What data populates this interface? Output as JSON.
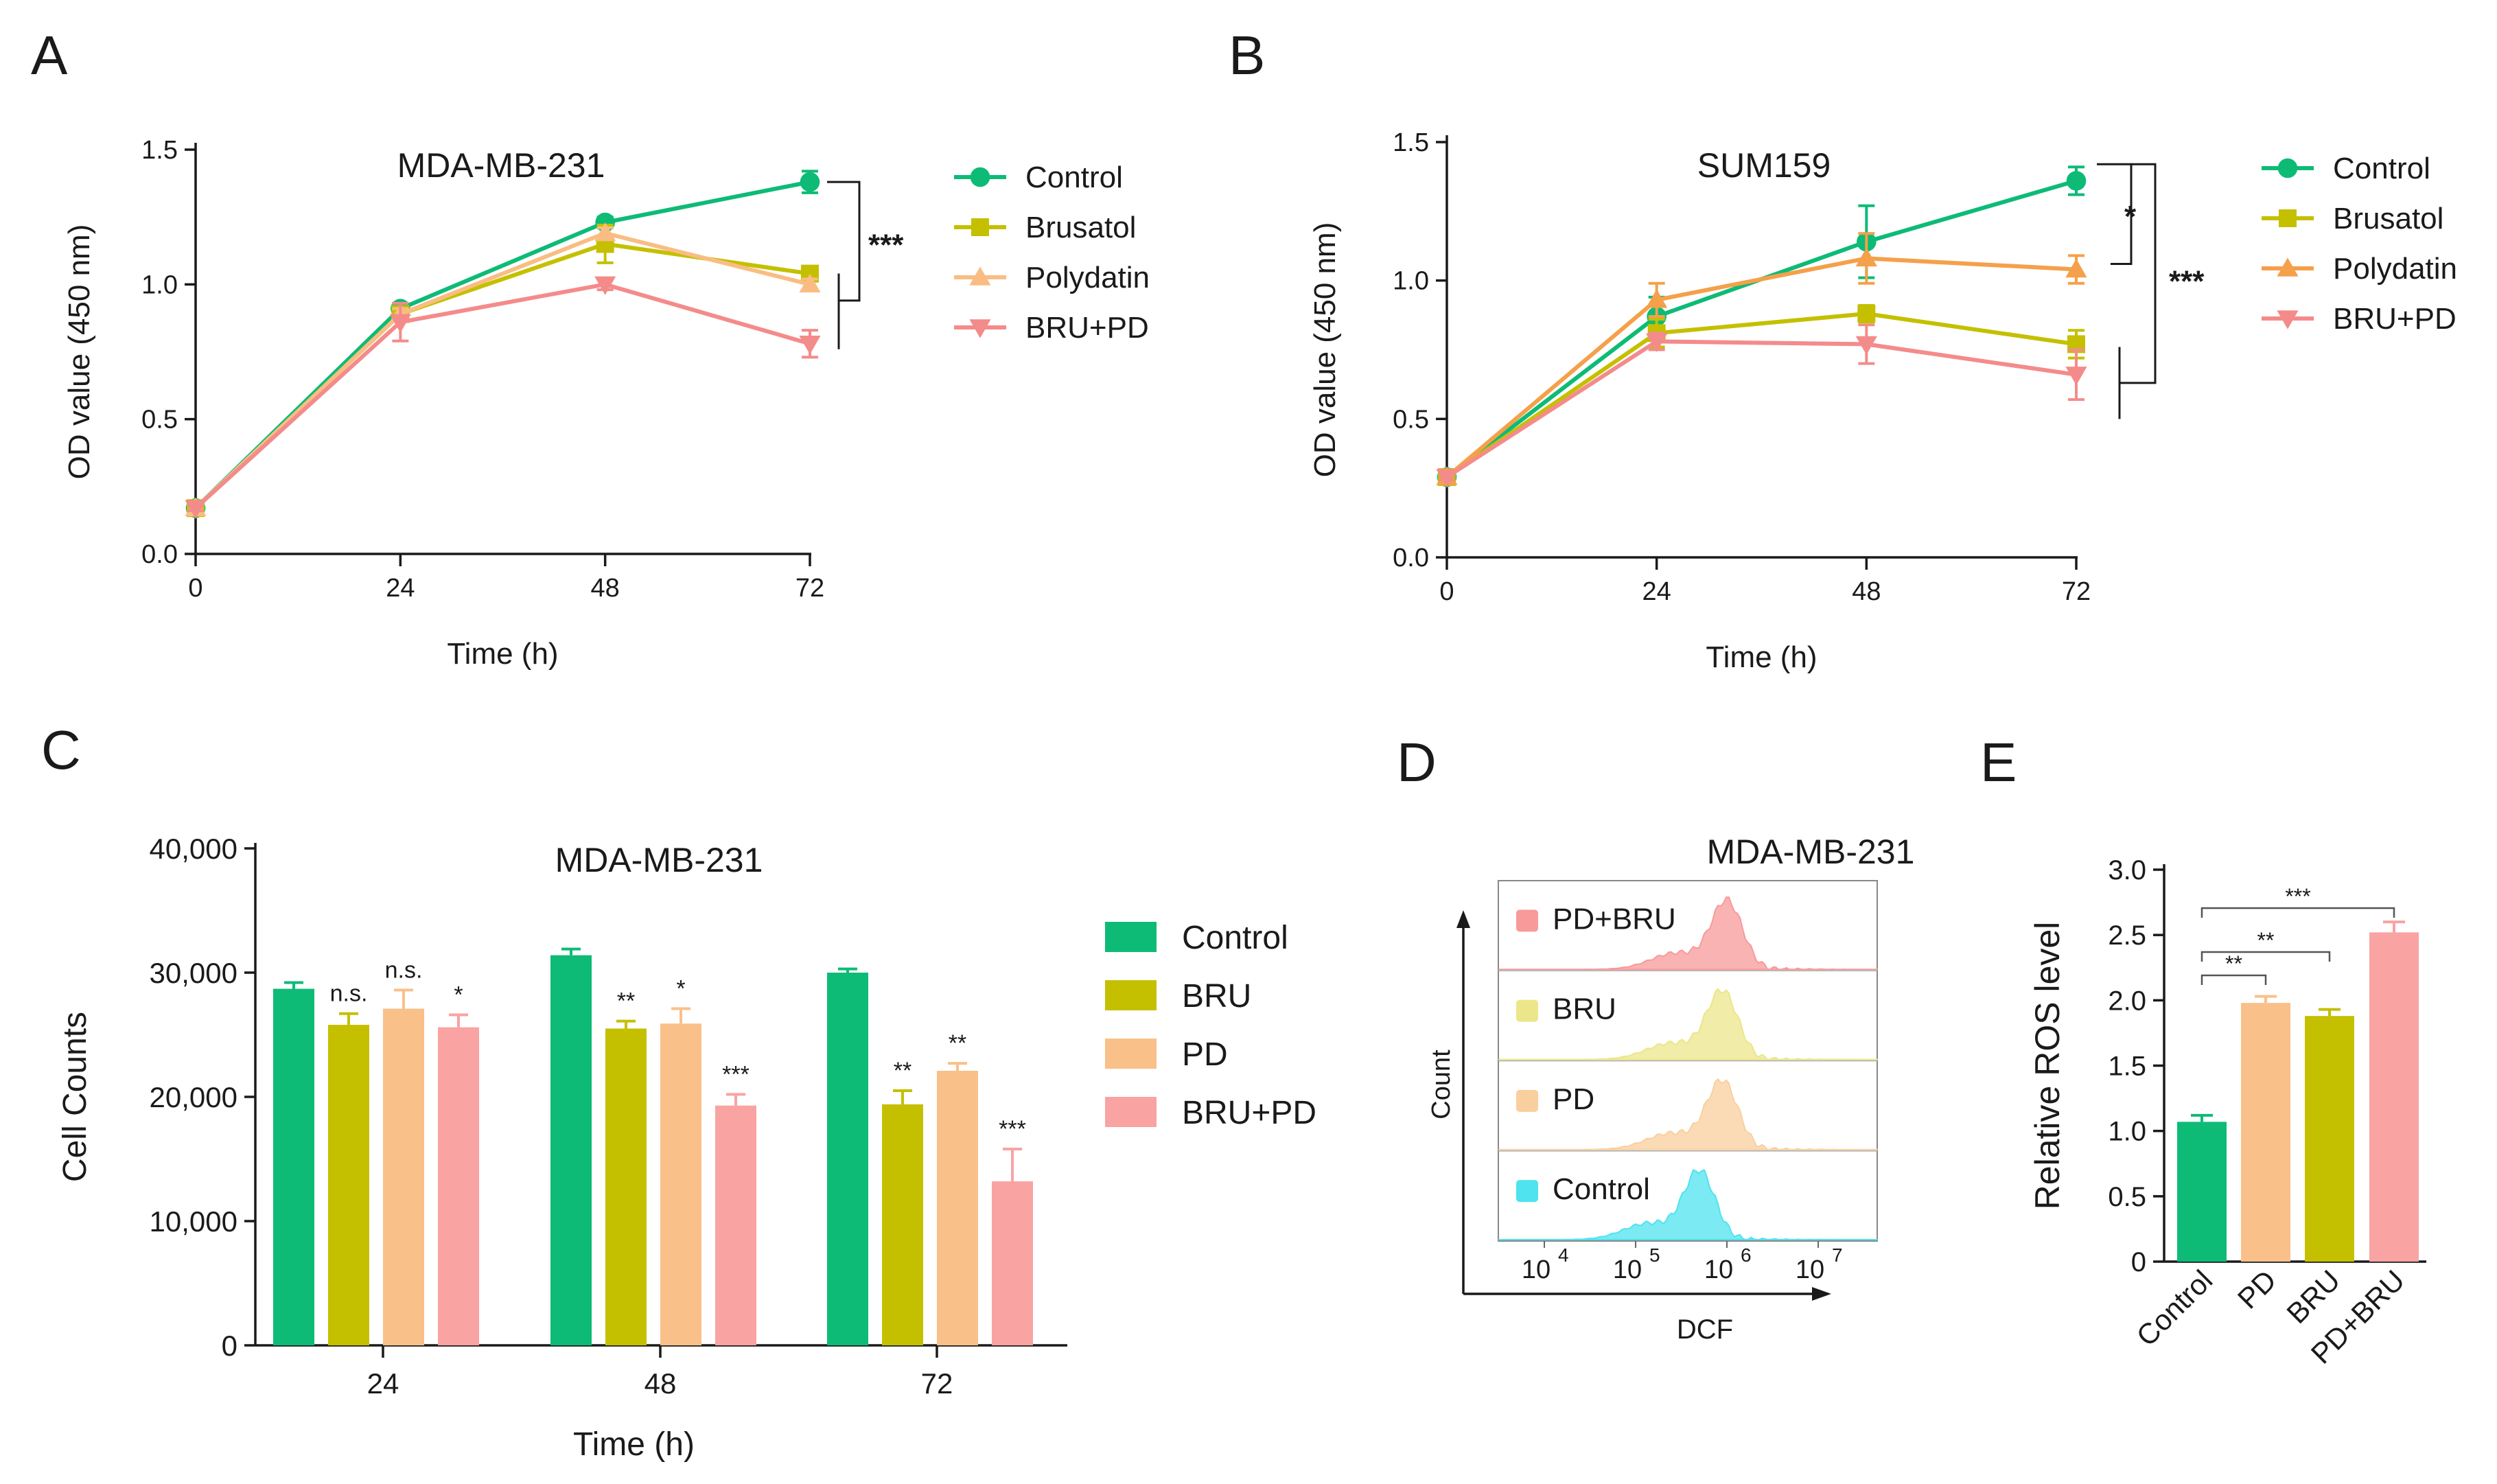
{
  "panels": {
    "A": "A",
    "B": "B",
    "C": "C",
    "D": "D",
    "E": "E"
  },
  "colors": {
    "control": "#0dbb77",
    "brusatol": "#c4c000",
    "polydatin": "#f9bd83",
    "bru_pd": "#f48b8b",
    "polydatin_b": "#f5a04a",
    "c_pd": "#f9c08a",
    "c_brupd": "#f9a3a3",
    "flow_red": "#f89a9a",
    "flow_yellow": "#ece68a",
    "flow_orange": "#f9cf9e",
    "flow_cyan": "#4fe3ef"
  },
  "chart_data": [
    {
      "id": "A",
      "type": "line",
      "title": "MDA-MB-231",
      "xlabel": "Time (h)",
      "ylabel": "OD value (450 nm)",
      "x": [
        0,
        24,
        48,
        72
      ],
      "xticks": [
        "0",
        "24",
        "48",
        "72"
      ],
      "ylim": [
        0,
        1.5
      ],
      "yticks": [
        "0.0",
        "0.5",
        "1.0",
        "1.5"
      ],
      "series": [
        {
          "name": "Control",
          "marker": "circle",
          "color": "#0dbb77",
          "values": [
            0.17,
            0.91,
            1.23,
            1.38
          ],
          "err": [
            0.01,
            0.02,
            0.02,
            0.04
          ]
        },
        {
          "name": "Brusatol",
          "marker": "square",
          "color": "#c4c000",
          "values": [
            0.17,
            0.89,
            1.15,
            1.04
          ],
          "err": [
            0.01,
            0.02,
            0.07,
            0.02
          ]
        },
        {
          "name": "Polydatin",
          "marker": "triangle-up",
          "color": "#f9bd83",
          "values": [
            0.17,
            0.89,
            1.19,
            1.0
          ],
          "err": [
            0.01,
            0.02,
            0.02,
            0.02
          ]
        },
        {
          "name": "BRU+PD",
          "marker": "triangle-down",
          "color": "#f48b8b",
          "values": [
            0.17,
            0.86,
            1.0,
            0.78
          ],
          "err": [
            0.01,
            0.07,
            0.02,
            0.05
          ]
        }
      ],
      "annotations": [
        "***"
      ]
    },
    {
      "id": "B",
      "type": "line",
      "title": "SUM159",
      "xlabel": "Time (h)",
      "ylabel": "OD value (450 nm)",
      "x": [
        0,
        24,
        48,
        72
      ],
      "xticks": [
        "0",
        "24",
        "48",
        "72"
      ],
      "ylim": [
        0,
        1.5
      ],
      "yticks": [
        "0.0",
        "0.5",
        "1.0",
        "1.5"
      ],
      "series": [
        {
          "name": "Control",
          "marker": "circle",
          "color": "#0dbb77",
          "values": [
            0.29,
            0.87,
            1.14,
            1.36
          ],
          "err": [
            0.01,
            0.07,
            0.13,
            0.05
          ]
        },
        {
          "name": "Brusatol",
          "marker": "square",
          "color": "#c4c000",
          "values": [
            0.29,
            0.81,
            0.88,
            0.77
          ],
          "err": [
            0.01,
            0.05,
            0.03,
            0.05
          ]
        },
        {
          "name": "Polydatin",
          "marker": "triangle-up",
          "color": "#f5a04a",
          "values": [
            0.29,
            0.93,
            1.08,
            1.04
          ],
          "err": [
            0.01,
            0.06,
            0.09,
            0.05
          ]
        },
        {
          "name": "BRU+PD",
          "marker": "triangle-down",
          "color": "#f48b8b",
          "values": [
            0.29,
            0.78,
            0.77,
            0.66
          ],
          "err": [
            0.01,
            0.03,
            0.07,
            0.09
          ]
        }
      ],
      "annotations": [
        "*",
        "***"
      ]
    },
    {
      "id": "C",
      "type": "bar",
      "title": "MDA-MB-231",
      "xlabel": "Time (h)",
      "ylabel": "Cell Counts",
      "categories": [
        "24",
        "48",
        "72"
      ],
      "ylim": [
        0,
        40000
      ],
      "yticks": [
        "0",
        "10,000",
        "20,000",
        "30,000",
        "40,000"
      ],
      "series": [
        {
          "name": "Control",
          "color": "#0dbb77",
          "values": [
            28700,
            31400,
            30000
          ],
          "err": [
            500,
            500,
            300
          ],
          "sig": [
            "",
            "",
            ""
          ]
        },
        {
          "name": "BRU",
          "color": "#c4c000",
          "values": [
            25800,
            25500,
            19400
          ],
          "err": [
            900,
            600,
            1100
          ],
          "sig": [
            "n.s.",
            "**",
            "**"
          ]
        },
        {
          "name": "PD",
          "color": "#f9c08a",
          "values": [
            27100,
            25900,
            22100
          ],
          "err": [
            1500,
            1200,
            600
          ],
          "sig": [
            "n.s.",
            "*",
            "**"
          ]
        },
        {
          "name": "BRU+PD",
          "color": "#f9a3a3",
          "values": [
            25600,
            19300,
            13200
          ],
          "err": [
            1000,
            900,
            2600
          ],
          "sig": [
            "*",
            "***",
            "***"
          ]
        }
      ]
    },
    {
      "id": "D",
      "type": "histogram",
      "title": "MDA-MB-231",
      "xlabel": "DCF",
      "ylabel": "Count",
      "xticks": [
        "10",
        "10",
        "10",
        "10"
      ],
      "xtick_exp": [
        "4",
        "5",
        "6",
        "7"
      ],
      "tracks": [
        {
          "name": "PD+BRU",
          "color": "#f89a9a",
          "peak_log": 6.0
        },
        {
          "name": "BRU",
          "color": "#ece68a",
          "peak_log": 5.95
        },
        {
          "name": "PD",
          "color": "#f9cf9e",
          "peak_log": 5.95
        },
        {
          "name": "Control",
          "color": "#4fe3ef",
          "peak_log": 5.7
        }
      ]
    },
    {
      "id": "E",
      "type": "bar",
      "title": "",
      "xlabel": "",
      "ylabel": "Relative ROS level",
      "categories": [
        "Control",
        "PD",
        "BRU",
        "PD+BRU"
      ],
      "ylim": [
        0,
        3.0
      ],
      "yticks": [
        "0",
        "0.5",
        "1.0",
        "1.5",
        "2.0",
        "2.5",
        "3.0"
      ],
      "series": [
        {
          "name": "Relative ROS level",
          "colors": [
            "#0dbb77",
            "#f9c08a",
            "#c4c000",
            "#f9a3a3"
          ],
          "values": [
            1.07,
            1.98,
            1.88,
            2.52
          ],
          "err": [
            0.05,
            0.05,
            0.05,
            0.08
          ]
        }
      ],
      "comparisons": [
        {
          "from": "Control",
          "to": "PD",
          "label": "**"
        },
        {
          "from": "Control",
          "to": "BRU",
          "label": "**"
        },
        {
          "from": "Control",
          "to": "PD+BRU",
          "label": "***"
        }
      ]
    }
  ]
}
